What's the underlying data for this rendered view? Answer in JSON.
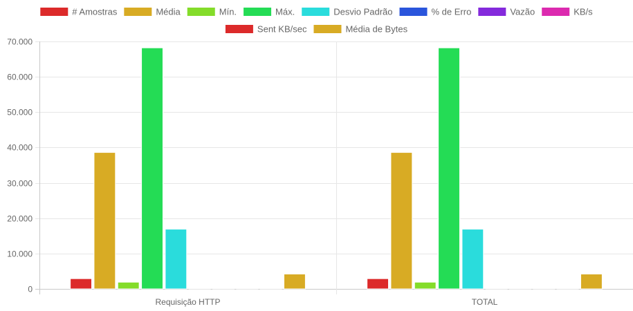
{
  "chart_data": {
    "type": "bar",
    "categories": [
      "Requisição HTTP",
      "TOTAL"
    ],
    "series": [
      {
        "name": "# Amostras",
        "color": "#dc2a2a",
        "values": [
          2900,
          2900
        ]
      },
      {
        "name": "Média",
        "color": "#d8ab24",
        "values": [
          38600,
          38600
        ]
      },
      {
        "name": "Mín.",
        "color": "#84dc2a",
        "values": [
          1900,
          1900
        ]
      },
      {
        "name": "Máx.",
        "color": "#24dc55",
        "values": [
          68200,
          68200
        ]
      },
      {
        "name": "Desvio Padrão",
        "color": "#2adcdc",
        "values": [
          16900,
          16900
        ]
      },
      {
        "name": "% de Erro",
        "color": "#2a55dc",
        "values": [
          0,
          0
        ]
      },
      {
        "name": "Vazão",
        "color": "#842adc",
        "values": [
          10,
          10
        ]
      },
      {
        "name": "KB/s",
        "color": "#dc2aaf",
        "values": [
          10,
          10
        ]
      },
      {
        "name": "Sent KB/sec",
        "color": "#dc2a2a",
        "values": [
          5,
          5
        ]
      },
      {
        "name": "Média de Bytes",
        "color": "#d8ab24",
        "values": [
          4200,
          4200
        ]
      }
    ],
    "y_ticks": [
      "0",
      "10.000",
      "20.000",
      "30.000",
      "40.000",
      "50.000",
      "60.000",
      "70.000"
    ],
    "ylim": [
      0,
      70000
    ],
    "grid": true,
    "legend_position": "top"
  }
}
